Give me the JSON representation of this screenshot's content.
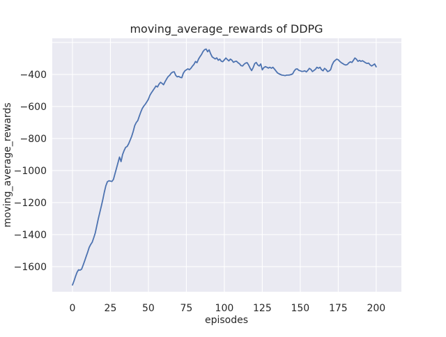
{
  "chart_data": {
    "type": "line",
    "title": "moving_average_rewards of DDPG",
    "xlabel": "episodes",
    "ylabel": "moving_average_rewards",
    "xlim": [
      -13.3,
      216.6
    ],
    "ylim": [
      -1757,
      -174
    ],
    "grid": true,
    "legend": "none",
    "axes_background": "#eaeaf2",
    "grid_color": "#ffffff",
    "line_color": "#4c72b0",
    "text_color": "#262626",
    "figure_background": "#ffffff",
    "x_ticks": [
      {
        "value": 0,
        "label": "0"
      },
      {
        "value": 25,
        "label": "25"
      },
      {
        "value": 50,
        "label": "50"
      },
      {
        "value": 75,
        "label": "75"
      },
      {
        "value": 100,
        "label": "100"
      },
      {
        "value": 125,
        "label": "125"
      },
      {
        "value": 150,
        "label": "150"
      },
      {
        "value": 175,
        "label": "175"
      },
      {
        "value": 200,
        "label": "200"
      }
    ],
    "y_ticks": [
      {
        "value": -400,
        "label": "−400"
      },
      {
        "value": -600,
        "label": "−600"
      },
      {
        "value": -800,
        "label": "−800"
      },
      {
        "value": -1000,
        "label": "−1000"
      },
      {
        "value": -1200,
        "label": "−1200"
      },
      {
        "value": -1400,
        "label": "−1400"
      },
      {
        "value": -1600,
        "label": "−1600"
      }
    ],
    "extra_y_gridlines": [
      -200
    ],
    "series": [
      {
        "name": "moving_average_rewards",
        "x_start": 0,
        "x_step": 1,
        "values": [
          -1715,
          -1690,
          -1662,
          -1636,
          -1620,
          -1622,
          -1616,
          -1592,
          -1565,
          -1537,
          -1510,
          -1480,
          -1462,
          -1448,
          -1420,
          -1390,
          -1345,
          -1302,
          -1262,
          -1222,
          -1180,
          -1135,
          -1095,
          -1070,
          -1064,
          -1066,
          -1068,
          -1055,
          -1020,
          -985,
          -950,
          -916,
          -944,
          -900,
          -875,
          -855,
          -850,
          -833,
          -810,
          -786,
          -755,
          -720,
          -700,
          -688,
          -660,
          -635,
          -612,
          -597,
          -585,
          -570,
          -555,
          -530,
          -514,
          -500,
          -486,
          -472,
          -478,
          -460,
          -449,
          -456,
          -464,
          -445,
          -428,
          -413,
          -405,
          -392,
          -385,
          -383,
          -406,
          -415,
          -412,
          -418,
          -420,
          -392,
          -378,
          -371,
          -365,
          -370,
          -361,
          -348,
          -337,
          -319,
          -326,
          -304,
          -289,
          -275,
          -256,
          -245,
          -241,
          -258,
          -246,
          -271,
          -290,
          -296,
          -303,
          -296,
          -311,
          -304,
          -317,
          -320,
          -309,
          -297,
          -307,
          -315,
          -304,
          -311,
          -324,
          -319,
          -317,
          -326,
          -333,
          -345,
          -347,
          -336,
          -329,
          -326,
          -341,
          -361,
          -376,
          -357,
          -332,
          -325,
          -340,
          -347,
          -334,
          -371,
          -357,
          -351,
          -355,
          -360,
          -355,
          -361,
          -355,
          -366,
          -378,
          -390,
          -396,
          -400,
          -404,
          -405,
          -407,
          -404,
          -404,
          -403,
          -400,
          -396,
          -379,
          -367,
          -365,
          -374,
          -377,
          -381,
          -380,
          -377,
          -384,
          -374,
          -362,
          -368,
          -382,
          -375,
          -367,
          -355,
          -361,
          -355,
          -370,
          -377,
          -362,
          -369,
          -382,
          -378,
          -370,
          -340,
          -321,
          -312,
          -304,
          -308,
          -318,
          -326,
          -332,
          -338,
          -341,
          -338,
          -327,
          -321,
          -325,
          -312,
          -297,
          -305,
          -318,
          -312,
          -318,
          -314,
          -320,
          -327,
          -331,
          -329,
          -340,
          -347,
          -341,
          -334,
          -352
        ]
      }
    ]
  }
}
